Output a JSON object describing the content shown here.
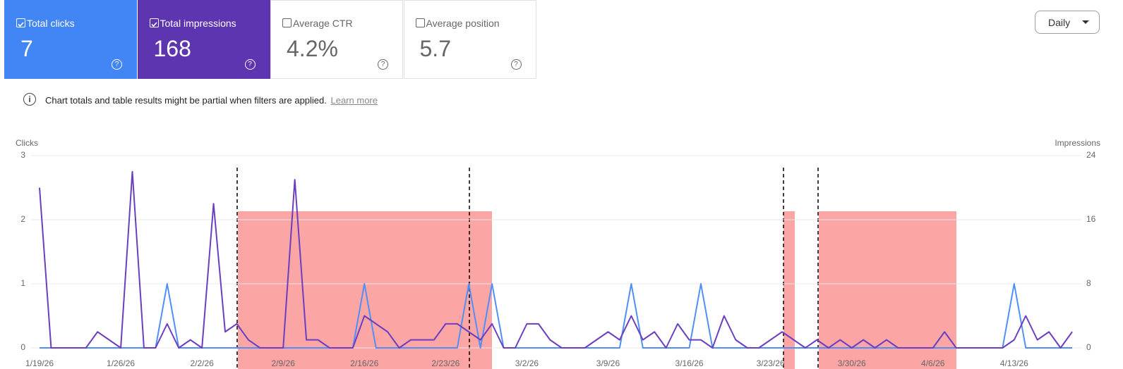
{
  "metrics": [
    {
      "label": "Total clicks",
      "value": "7",
      "checked": true,
      "color": "#4285f4"
    },
    {
      "label": "Total impressions",
      "value": "168",
      "checked": true,
      "color": "#5e35b1"
    },
    {
      "label": "Average CTR",
      "value": "4.2%",
      "checked": false,
      "color": "#ffffff"
    },
    {
      "label": "Average position",
      "value": "5.7",
      "checked": false,
      "color": "#ffffff"
    }
  ],
  "notice": {
    "text": "Chart totals and table results might be partial when filters are applied.",
    "link": "Learn more"
  },
  "dropdown": "Daily",
  "chart_data": {
    "type": "line",
    "ylabel": "Clicks",
    "y2label": "Impressions",
    "categories": [
      "1/19/26",
      null,
      null,
      null,
      null,
      null,
      null,
      "1/26/26",
      null,
      null,
      null,
      null,
      null,
      null,
      "2/2/26",
      null,
      null,
      null,
      null,
      null,
      null,
      "2/9/26",
      null,
      null,
      null,
      null,
      null,
      null,
      "2/16/26",
      null,
      null,
      null,
      null,
      null,
      null,
      "2/23/26",
      null,
      null,
      null,
      null,
      null,
      null,
      "3/2/26",
      null,
      null,
      null,
      null,
      null,
      null,
      "3/9/26",
      null,
      null,
      null,
      null,
      null,
      null,
      "3/16/26",
      null,
      null,
      null,
      null,
      null,
      null,
      "3/23/26",
      null,
      null,
      null,
      null,
      null,
      null,
      "3/30/26",
      null,
      null,
      null,
      null,
      null,
      null,
      "4/6/26",
      null,
      null,
      null,
      null,
      null,
      null,
      "4/13/26",
      null,
      null,
      null,
      null,
      null
    ],
    "series": [
      {
        "color": "#4f8ff7",
        "values": [
          0,
          0,
          0,
          0,
          0,
          0,
          0,
          0,
          0,
          0,
          0,
          1,
          0,
          0,
          0,
          0,
          0,
          0,
          0,
          0,
          0,
          0,
          0,
          0,
          0,
          0,
          0,
          0,
          1,
          0,
          0,
          0,
          0,
          0,
          0,
          0,
          0,
          1,
          0,
          1,
          0,
          0,
          0,
          0,
          0,
          0,
          0,
          0,
          0,
          0,
          0,
          1,
          0,
          0,
          0,
          0,
          0,
          1,
          0,
          0,
          0,
          0,
          0,
          0,
          0,
          0,
          0,
          0,
          0,
          0,
          0,
          0,
          0,
          0,
          0,
          0,
          0,
          0,
          0,
          0,
          0,
          0,
          0,
          0,
          1,
          0,
          0,
          0,
          0,
          0
        ]
      },
      {
        "color": "#6a3fc0",
        "axis": "y2",
        "values": [
          20,
          0,
          0,
          0,
          0,
          2,
          1,
          0,
          22,
          0,
          0,
          3,
          0,
          1,
          0,
          18,
          2,
          3,
          1,
          0,
          0,
          0,
          21,
          1,
          1,
          0,
          0,
          0,
          4,
          3,
          2,
          0,
          1,
          1,
          1,
          3,
          3,
          2,
          1,
          3,
          0,
          0,
          3,
          3,
          1,
          0,
          0,
          0,
          1,
          2,
          1,
          4,
          1,
          2,
          0,
          3,
          1,
          1,
          0,
          4,
          1,
          0,
          0,
          1,
          2,
          1,
          0,
          1,
          0,
          1,
          0,
          1,
          0,
          1,
          0,
          0,
          0,
          0,
          2,
          0,
          0,
          0,
          0,
          0,
          1,
          4,
          1,
          2,
          0,
          2
        ]
      }
    ],
    "ylim": [
      0,
      3
    ],
    "yticks": [
      0,
      1,
      2,
      3
    ],
    "y2lim": [
      0,
      24
    ],
    "y2ticks": [
      0,
      8,
      16,
      24
    ],
    "grid": true
  }
}
